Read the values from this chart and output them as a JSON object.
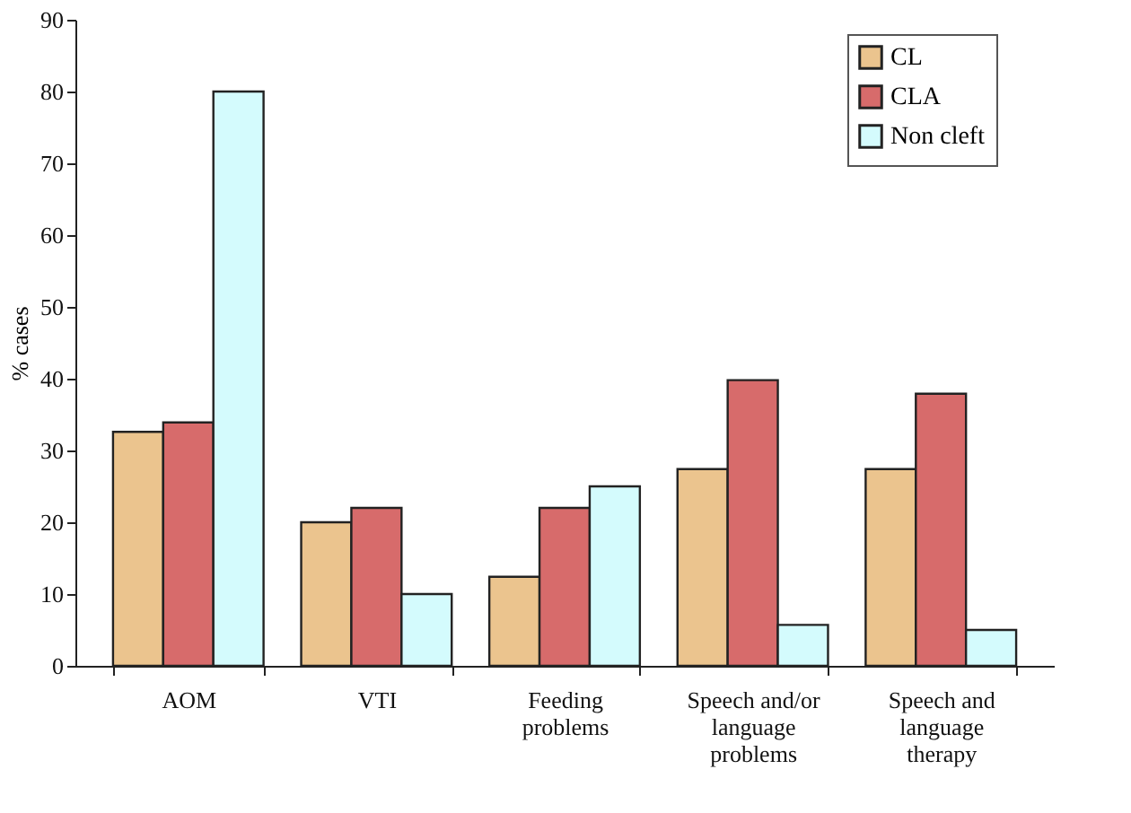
{
  "chart_data": {
    "type": "bar",
    "ylabel": "% cases",
    "categories": [
      "AOM",
      "VTI",
      "Feeding problems",
      "Speech and/or language problems",
      "Speech and language therapy"
    ],
    "series": [
      {
        "name": "CL",
        "color": "#ebc48e",
        "values": [
          32.6,
          20,
          12.4,
          27.4,
          27.4
        ]
      },
      {
        "name": "CLA",
        "color": "#d76b6b",
        "values": [
          33.9,
          22,
          22,
          39.8,
          37.9
        ]
      },
      {
        "name": "Non cleft",
        "color": "#d4fbfd",
        "values": [
          80,
          10,
          25,
          5.7,
          5.0
        ]
      }
    ],
    "ylim": [
      0,
      90
    ],
    "yticks": [
      0,
      10,
      20,
      30,
      40,
      50,
      60,
      70,
      80,
      90
    ],
    "grid": false,
    "legend": "top right"
  }
}
